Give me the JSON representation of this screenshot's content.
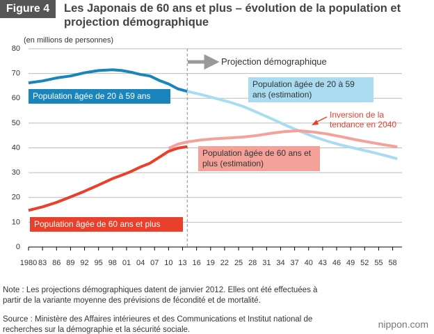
{
  "header": {
    "figure": "Figure 4",
    "title": "Les Japonais de 60 ans et plus – évolution de la population et projection démographique"
  },
  "chart_data": {
    "type": "line",
    "y_label": "(en millions de personnes)",
    "xlim": [
      1980,
      2060
    ],
    "ylim": [
      0,
      80
    ],
    "yticks": [
      0,
      10,
      20,
      30,
      40,
      50,
      60,
      70,
      80
    ],
    "xticks": [
      1980,
      {
        "value": 1983,
        "label": "83"
      },
      {
        "value": 1986,
        "label": "86"
      },
      {
        "value": 1989,
        "label": "89"
      },
      {
        "value": 1992,
        "label": "92"
      },
      {
        "value": 1995,
        "label": "95"
      },
      {
        "value": 1998,
        "label": "98"
      },
      {
        "value": 2001,
        "label": "01"
      },
      {
        "value": 2004,
        "label": "04"
      },
      {
        "value": 2007,
        "label": "07"
      },
      {
        "value": 2010,
        "label": "10"
      },
      {
        "value": 2013,
        "label": "13"
      },
      {
        "value": 2016,
        "label": "16"
      },
      {
        "value": 2019,
        "label": "19"
      },
      {
        "value": 2022,
        "label": "22"
      },
      {
        "value": 2025,
        "label": "25"
      },
      {
        "value": 2028,
        "label": "28"
      },
      {
        "value": 2031,
        "label": "31"
      },
      {
        "value": 2034,
        "label": "34"
      },
      {
        "value": 2037,
        "label": "37"
      },
      {
        "value": 2040,
        "label": "40"
      },
      {
        "value": 2043,
        "label": "43"
      },
      {
        "value": 2046,
        "label": "46"
      },
      {
        "value": 2049,
        "label": "49"
      },
      {
        "value": 2052,
        "label": "52"
      },
      {
        "value": 2055,
        "label": "55"
      },
      {
        "value": 2058,
        "label": "58"
      }
    ],
    "grid": true,
    "series": [
      {
        "name": "Population âgée de 20 à 59 ans",
        "color": "#1a85bd",
        "x": [
          1980,
          1983,
          1986,
          1989,
          1992,
          1995,
          1998,
          2000,
          2002,
          2004,
          2006,
          2008,
          2010,
          2012,
          2014
        ],
        "values": [
          66.2,
          67,
          68.2,
          69,
          70.3,
          71.2,
          71.5,
          71.2,
          70.5,
          69.6,
          69,
          67.2,
          65.8,
          63.8,
          62.8
        ]
      },
      {
        "name": "Population âgée de 20 à 59 ans (estimation)",
        "color": "#a9dcf0",
        "x": [
          2014,
          2017,
          2020,
          2023,
          2026,
          2029,
          2032,
          2035,
          2038,
          2041,
          2044,
          2047,
          2050,
          2053,
          2056,
          2059
        ],
        "values": [
          62.8,
          61.5,
          60,
          58.5,
          56.7,
          54.3,
          51.8,
          49.2,
          46.8,
          44.6,
          42.7,
          41.1,
          39.8,
          38.5,
          37.1,
          35.6
        ]
      },
      {
        "name": "Population âgée de 60 ans et plus",
        "color": "#e8402a",
        "x": [
          1980,
          1983,
          1986,
          1989,
          1992,
          1995,
          1998,
          2000,
          2002,
          2004,
          2006,
          2008,
          2010,
          2012,
          2014
        ],
        "values": [
          14.8,
          16.2,
          18,
          20.2,
          22.5,
          25,
          27.6,
          29,
          30.5,
          32.3,
          33.8,
          36.2,
          38.6,
          39.9,
          40.5
        ]
      },
      {
        "name": "Population âgée de 60 ans et plus (estimation)",
        "color": "#f4a199",
        "x": [
          2010,
          2012,
          2014,
          2017,
          2020,
          2023,
          2026,
          2029,
          2032,
          2035,
          2038,
          2041,
          2044,
          2047,
          2050,
          2053,
          2056,
          2059
        ],
        "values": [
          39.8,
          41.5,
          42.4,
          43.2,
          43.7,
          44,
          44.4,
          45,
          45.9,
          46.6,
          46.9,
          46.4,
          45.6,
          44.5,
          43.3,
          42.3,
          41.3,
          40.4
        ]
      }
    ],
    "annotations": [
      "Projection démographique",
      "Inversion de la tendance en 2040"
    ]
  },
  "footer": {
    "note": "Note : Les projections démographiques datent de janvier 2012. Elles ont été effectuées à partir de la variante moyenne des prévisions de fécondité et de mortalité.",
    "source": "Source : Ministère des Affaires intérieures et des Communications et Institut national de recherches sur la démographie et la sécurité sociale.",
    "logo": "nippon.com"
  }
}
